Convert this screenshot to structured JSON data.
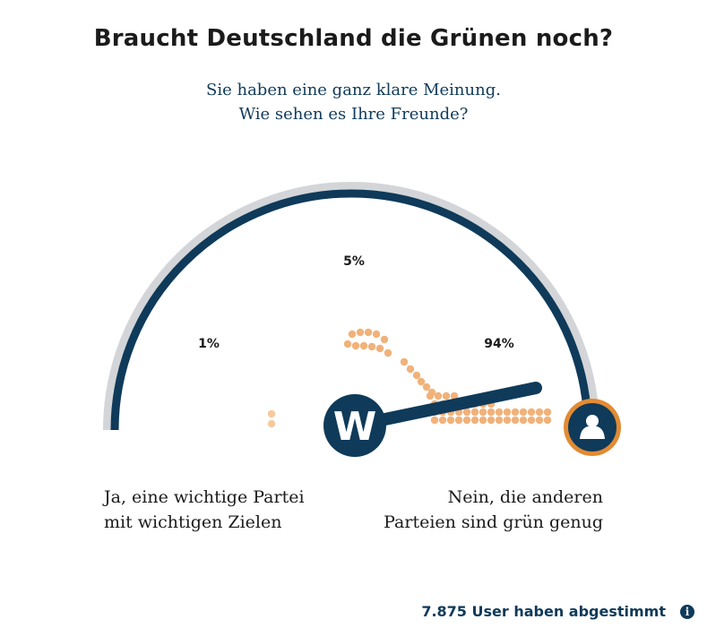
{
  "title": "Braucht Deutschland die Grünen noch?",
  "subtitle": {
    "line1": "Sie haben eine ganz klare Meinung.",
    "line2": "Wie sehen es Ihre Freunde?"
  },
  "gauge": {
    "percentages": [
      "1%",
      "5%",
      "94%"
    ],
    "needle_value": 0.94,
    "brand_logo_letter": "W",
    "colors": {
      "arc_dark": "#0f3a5a",
      "arc_light": "#d3d5d8",
      "dots": "#f1b27a",
      "dots_light": "#f6c99f",
      "user_ring": "#e28b33"
    }
  },
  "answers": {
    "yes": {
      "line1": "Ja, eine wichtige Partei",
      "line2": "mit wichtigen Zielen"
    },
    "no": {
      "line1": "Nein, die anderen",
      "line2": "Parteien sind grün genug"
    }
  },
  "footer": {
    "votes_text": "7.875 User haben abgestimmt",
    "info_icon": "info-icon"
  }
}
